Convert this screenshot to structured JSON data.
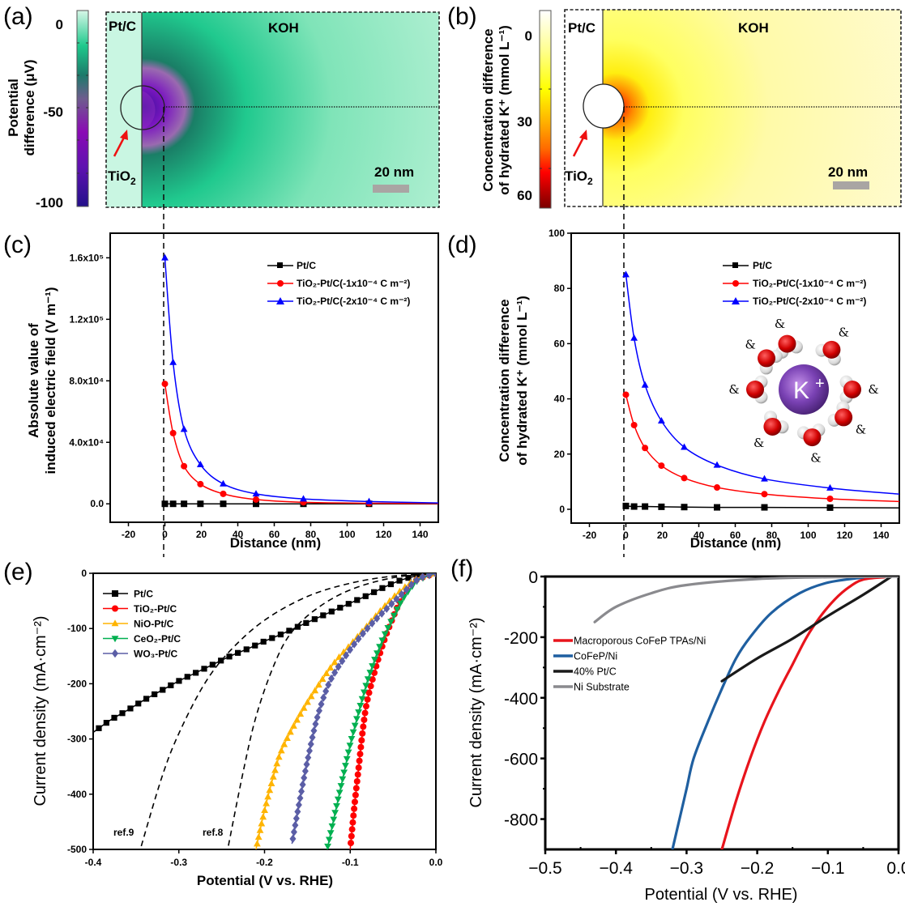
{
  "panels": {
    "a": {
      "letter": "(a)"
    },
    "b": {
      "letter": "(b)"
    },
    "c": {
      "letter": "(c)"
    },
    "d": {
      "letter": "(d)"
    },
    "e": {
      "letter": "(e)"
    },
    "f": {
      "letter": "(f)"
    }
  },
  "maps": [
    {
      "id": "a",
      "region_left": "Pt/C",
      "region_right": "KOH",
      "particle_label": "TiO",
      "particle_sub": "2",
      "scale_bar": "20 nm",
      "colorbar": {
        "label_line1": "Potential",
        "label_line2": "difference (μV)",
        "ticks": [
          "0",
          "-50",
          "-100"
        ],
        "range": [
          0,
          -100
        ],
        "colors": [
          "#d8f7e8",
          "#1fc98c",
          "#1d7a6a",
          "#6e5c8e",
          "#8a0ab4",
          "#5e12b0",
          "#23108a"
        ]
      },
      "field_colors": {
        "background": "#bdf1d8",
        "mid": "#2fce95",
        "dark": "#128866",
        "core": "#6b18b8",
        "center": "#3a0f9a"
      }
    },
    {
      "id": "b",
      "region_left": "Pt/C",
      "region_right": "KOH",
      "particle_label": "TiO",
      "particle_sub": "2",
      "scale_bar": "20 nm",
      "colorbar": {
        "label_line1": "Concentration difference",
        "label_line2": "of hydrated K⁺ (mmol L⁻¹)",
        "ticks": [
          "0",
          "30",
          "60"
        ],
        "range": [
          0,
          60
        ],
        "colors": [
          "#ffffff",
          "#ffff80",
          "#ffff00",
          "#ffb000",
          "#ff6000",
          "#ff0000",
          "#8a0000"
        ]
      },
      "field_colors": {
        "background": "#fffbd0",
        "glow": "#ffff30",
        "orange": "#ff9a00",
        "red": "#ff1000"
      }
    }
  ],
  "chart_data": [
    {
      "id": "c",
      "type": "line",
      "title": "",
      "xlabel": "Distance (nm)",
      "ylabel_line1": "Absolute value of",
      "ylabel_line2": "induced electric field (V m⁻¹)",
      "xlim": [
        -30,
        150
      ],
      "ylim": [
        -12000,
        176000
      ],
      "xticks": [
        -20,
        0,
        20,
        40,
        60,
        80,
        100,
        120,
        140
      ],
      "yticks": [
        0,
        40000,
        80000,
        120000,
        160000
      ],
      "ytick_labels": [
        "0.0",
        "4.0x10⁴",
        "8.0x10⁴",
        "1.2x10⁵",
        "1.6x10⁵"
      ],
      "legend_position": "top-right",
      "series": [
        {
          "name": "Pt/C",
          "color": "#000000",
          "marker": "square",
          "x": [
            0,
            4.5,
            10.5,
            19.5,
            32,
            50,
            76,
            112
          ],
          "y": [
            0,
            0,
            0,
            0,
            0,
            0,
            0,
            0
          ]
        },
        {
          "name": "TiO₂-Pt/C(-1x10⁻⁴ C m⁻²)",
          "color": "#ff0000",
          "marker": "circle",
          "x": [
            0,
            4.5,
            10.5,
            19.5,
            32,
            50,
            76,
            112
          ],
          "y": [
            78000,
            46000,
            24500,
            12800,
            6500,
            2800,
            1000,
            400
          ]
        },
        {
          "name": "TiO₂-Pt/C(-2x10⁻⁴ C m⁻²)",
          "color": "#0000ff",
          "marker": "triangle-up",
          "x": [
            0,
            4.5,
            10.5,
            19.5,
            32,
            50,
            76,
            112
          ],
          "y": [
            160000,
            92000,
            48500,
            25500,
            13000,
            6500,
            3200,
            1500
          ]
        }
      ],
      "tail_x": 150,
      "tail_y": {
        "red": 200,
        "blue": 600,
        "black": 0
      }
    },
    {
      "id": "d",
      "type": "line",
      "title": "",
      "xlabel": "Distance (nm)",
      "ylabel_line1": "Concentration difference",
      "ylabel_line2": "of hydrated K⁺ (mmol L⁻¹)",
      "xlim": [
        -30,
        150
      ],
      "ylim": [
        -5,
        100
      ],
      "xticks": [
        -20,
        0,
        20,
        40,
        60,
        80,
        100,
        120,
        140
      ],
      "yticks": [
        0,
        20,
        40,
        60,
        80,
        100
      ],
      "ytick_labels": [
        "0",
        "20",
        "40",
        "60",
        "80",
        "100"
      ],
      "legend_position": "top-right",
      "inset": {
        "ion_label": "K",
        "ion_charge": "+",
        "water_molecules": 8
      },
      "series": [
        {
          "name": "Pt/C",
          "color": "#000000",
          "marker": "square",
          "x": [
            0,
            4.5,
            10.5,
            19.5,
            32,
            50,
            76,
            112
          ],
          "y": [
            1.2,
            1.0,
            1.0,
            0.9,
            0.8,
            0.7,
            0.7,
            0.6
          ]
        },
        {
          "name": "TiO₂-Pt/C(-1x10⁻⁴ C m⁻²)",
          "color": "#ff0000",
          "marker": "circle",
          "x": [
            0,
            4.5,
            10.5,
            19.5,
            32,
            50,
            76,
            112
          ],
          "y": [
            41.5,
            30.5,
            22.2,
            15.8,
            11.3,
            7.9,
            5.5,
            3.8
          ]
        },
        {
          "name": "TiO₂-Pt/C(-2x10⁻⁴ C m⁻²)",
          "color": "#0000ff",
          "marker": "triangle-up",
          "x": [
            0,
            4.5,
            10.5,
            19.5,
            32,
            50,
            76,
            112
          ],
          "y": [
            85,
            62,
            45,
            32,
            22.5,
            16,
            11,
            7.7
          ]
        }
      ],
      "tail_x": 150,
      "tail_y": {
        "red": 2.8,
        "blue": 5.5,
        "black": 0.5
      }
    },
    {
      "id": "e",
      "type": "line",
      "title": "",
      "xlabel": "Potential (V vs. RHE)",
      "ylabel": "Current density (mA·cm⁻²)",
      "xlim": [
        -0.4,
        0.0
      ],
      "ylim": [
        -500,
        0
      ],
      "xticks": [
        -0.4,
        -0.3,
        -0.2,
        -0.1,
        0.0
      ],
      "xtick_labels": [
        "-0.4",
        "-0.3",
        "-0.2",
        "-0.1",
        "0.0"
      ],
      "yticks": [
        0,
        -100,
        -200,
        -300,
        -400,
        -500
      ],
      "ytick_labels": [
        "0",
        "-100",
        "-200",
        "-300",
        "-400",
        "-500"
      ],
      "legend_position": "top-left",
      "annotations": [
        {
          "text": "ref.9"
        },
        {
          "text": "ref.8"
        }
      ],
      "series": [
        {
          "name": "Pt/C",
          "color": "#000000",
          "marker": "square",
          "x": [
            0.0,
            -0.02,
            -0.04,
            -0.06,
            -0.08,
            -0.1,
            -0.12,
            -0.14,
            -0.16,
            -0.18,
            -0.2,
            -0.22,
            -0.24,
            -0.26,
            -0.28,
            -0.3,
            -0.32,
            -0.34,
            -0.36,
            -0.38,
            -0.4
          ],
          "y": [
            0,
            -4,
            -12,
            -25,
            -40,
            -54,
            -68,
            -82,
            -96,
            -110,
            -123,
            -137,
            -150,
            -165,
            -180,
            -195,
            -212,
            -229,
            -248,
            -266,
            -288
          ]
        },
        {
          "name": "TiO₂-Pt/C",
          "color": "#ff0000",
          "marker": "circle",
          "x": [
            0.0,
            -0.02,
            -0.03,
            -0.04,
            -0.05,
            -0.06,
            -0.07,
            -0.08,
            -0.085,
            -0.09,
            -0.095,
            -0.1
          ],
          "y": [
            0,
            -10,
            -22,
            -45,
            -80,
            -120,
            -170,
            -230,
            -280,
            -350,
            -420,
            -500
          ]
        },
        {
          "name": "NiO-Pt/C",
          "color": "#ffb400",
          "marker": "triangle-up",
          "x": [
            0.0,
            -0.02,
            -0.04,
            -0.06,
            -0.08,
            -0.1,
            -0.12,
            -0.14,
            -0.16,
            -0.18,
            -0.19,
            -0.2,
            -0.21
          ],
          "y": [
            0,
            -8,
            -30,
            -60,
            -95,
            -130,
            -165,
            -210,
            -260,
            -320,
            -370,
            -430,
            -500
          ]
        },
        {
          "name": "CeO₂-Pt/C",
          "color": "#00b050",
          "marker": "triangle-down",
          "x": [
            0.0,
            -0.02,
            -0.03,
            -0.04,
            -0.05,
            -0.06,
            -0.07,
            -0.08,
            -0.09,
            -0.1,
            -0.11,
            -0.12,
            -0.127
          ],
          "y": [
            0,
            -12,
            -28,
            -50,
            -80,
            -112,
            -150,
            -195,
            -250,
            -310,
            -380,
            -450,
            -500
          ]
        },
        {
          "name": "WO₃-Pt/C",
          "color": "#5b5ea6",
          "marker": "diamond",
          "x": [
            0.0,
            -0.02,
            -0.04,
            -0.06,
            -0.08,
            -0.1,
            -0.12,
            -0.13,
            -0.14,
            -0.15,
            -0.16,
            -0.168
          ],
          "y": [
            0,
            -10,
            -38,
            -68,
            -100,
            -138,
            -185,
            -220,
            -270,
            -340,
            -420,
            -490
          ]
        }
      ],
      "reference_curves": [
        {
          "name": "ref.9",
          "style": "dashed",
          "x": [
            0.0,
            -0.05,
            -0.1,
            -0.15,
            -0.2,
            -0.24,
            -0.27,
            -0.3,
            -0.32,
            -0.345
          ],
          "y": [
            0,
            -5,
            -18,
            -42,
            -85,
            -140,
            -200,
            -290,
            -370,
            -500
          ]
        },
        {
          "name": "ref.8",
          "style": "dashed",
          "x": [
            0.0,
            -0.05,
            -0.1,
            -0.14,
            -0.17,
            -0.19,
            -0.21,
            -0.225,
            -0.243
          ],
          "y": [
            0,
            -8,
            -30,
            -65,
            -110,
            -170,
            -260,
            -360,
            -500
          ]
        }
      ]
    },
    {
      "id": "f",
      "type": "line",
      "title": "",
      "xlabel": "Potential (V vs. RHE)",
      "ylabel": "Current density (mA·cm⁻²)",
      "xlim": [
        -0.5,
        0.0
      ],
      "ylim": [
        -900,
        0
      ],
      "xticks": [
        -0.5,
        -0.4,
        -0.3,
        -0.2,
        -0.1,
        0.0
      ],
      "xtick_labels": [
        "−0.5",
        "−0.4",
        "−0.3",
        "−0.2",
        "−0.1",
        "0.0"
      ],
      "yticks": [
        0,
        -200,
        -400,
        -600,
        -800
      ],
      "ytick_labels": [
        "0",
        "-200",
        "-400",
        "-600",
        "-800"
      ],
      "legend_position": "middle-left",
      "series": [
        {
          "name": "Macroporous CoFeP TPAs/Ni",
          "color": "#e8141c",
          "marker": "none",
          "x": [
            -0.02,
            -0.05,
            -0.07,
            -0.09,
            -0.11,
            -0.13,
            -0.15,
            -0.17,
            -0.19,
            -0.21,
            -0.23,
            -0.25
          ],
          "y": [
            -2,
            -10,
            -35,
            -75,
            -130,
            -200,
            -290,
            -380,
            -480,
            -600,
            -740,
            -900
          ]
        },
        {
          "name": "CoFeP/Ni",
          "color": "#1f5fa0",
          "marker": "none",
          "x": [
            -0.05,
            -0.1,
            -0.14,
            -0.18,
            -0.21,
            -0.23,
            -0.25,
            -0.27,
            -0.29,
            -0.3,
            -0.31,
            -0.32
          ],
          "y": [
            -3,
            -20,
            -55,
            -120,
            -200,
            -270,
            -370,
            -480,
            -600,
            -700,
            -800,
            -900
          ]
        },
        {
          "name": "40% Pt/C",
          "color": "#1a1a1a",
          "marker": "none",
          "x": [
            -0.01,
            -0.05,
            -0.1,
            -0.15,
            -0.2,
            -0.25
          ],
          "y": [
            0,
            -60,
            -130,
            -205,
            -270,
            -345
          ]
        },
        {
          "name": "Ni Substrate",
          "color": "#8a8a8e",
          "marker": "none",
          "x": [
            0.0,
            -0.1,
            -0.2,
            -0.3,
            -0.35,
            -0.4,
            -0.43
          ],
          "y": [
            0,
            -2,
            -8,
            -28,
            -55,
            -100,
            -150
          ]
        }
      ]
    }
  ]
}
